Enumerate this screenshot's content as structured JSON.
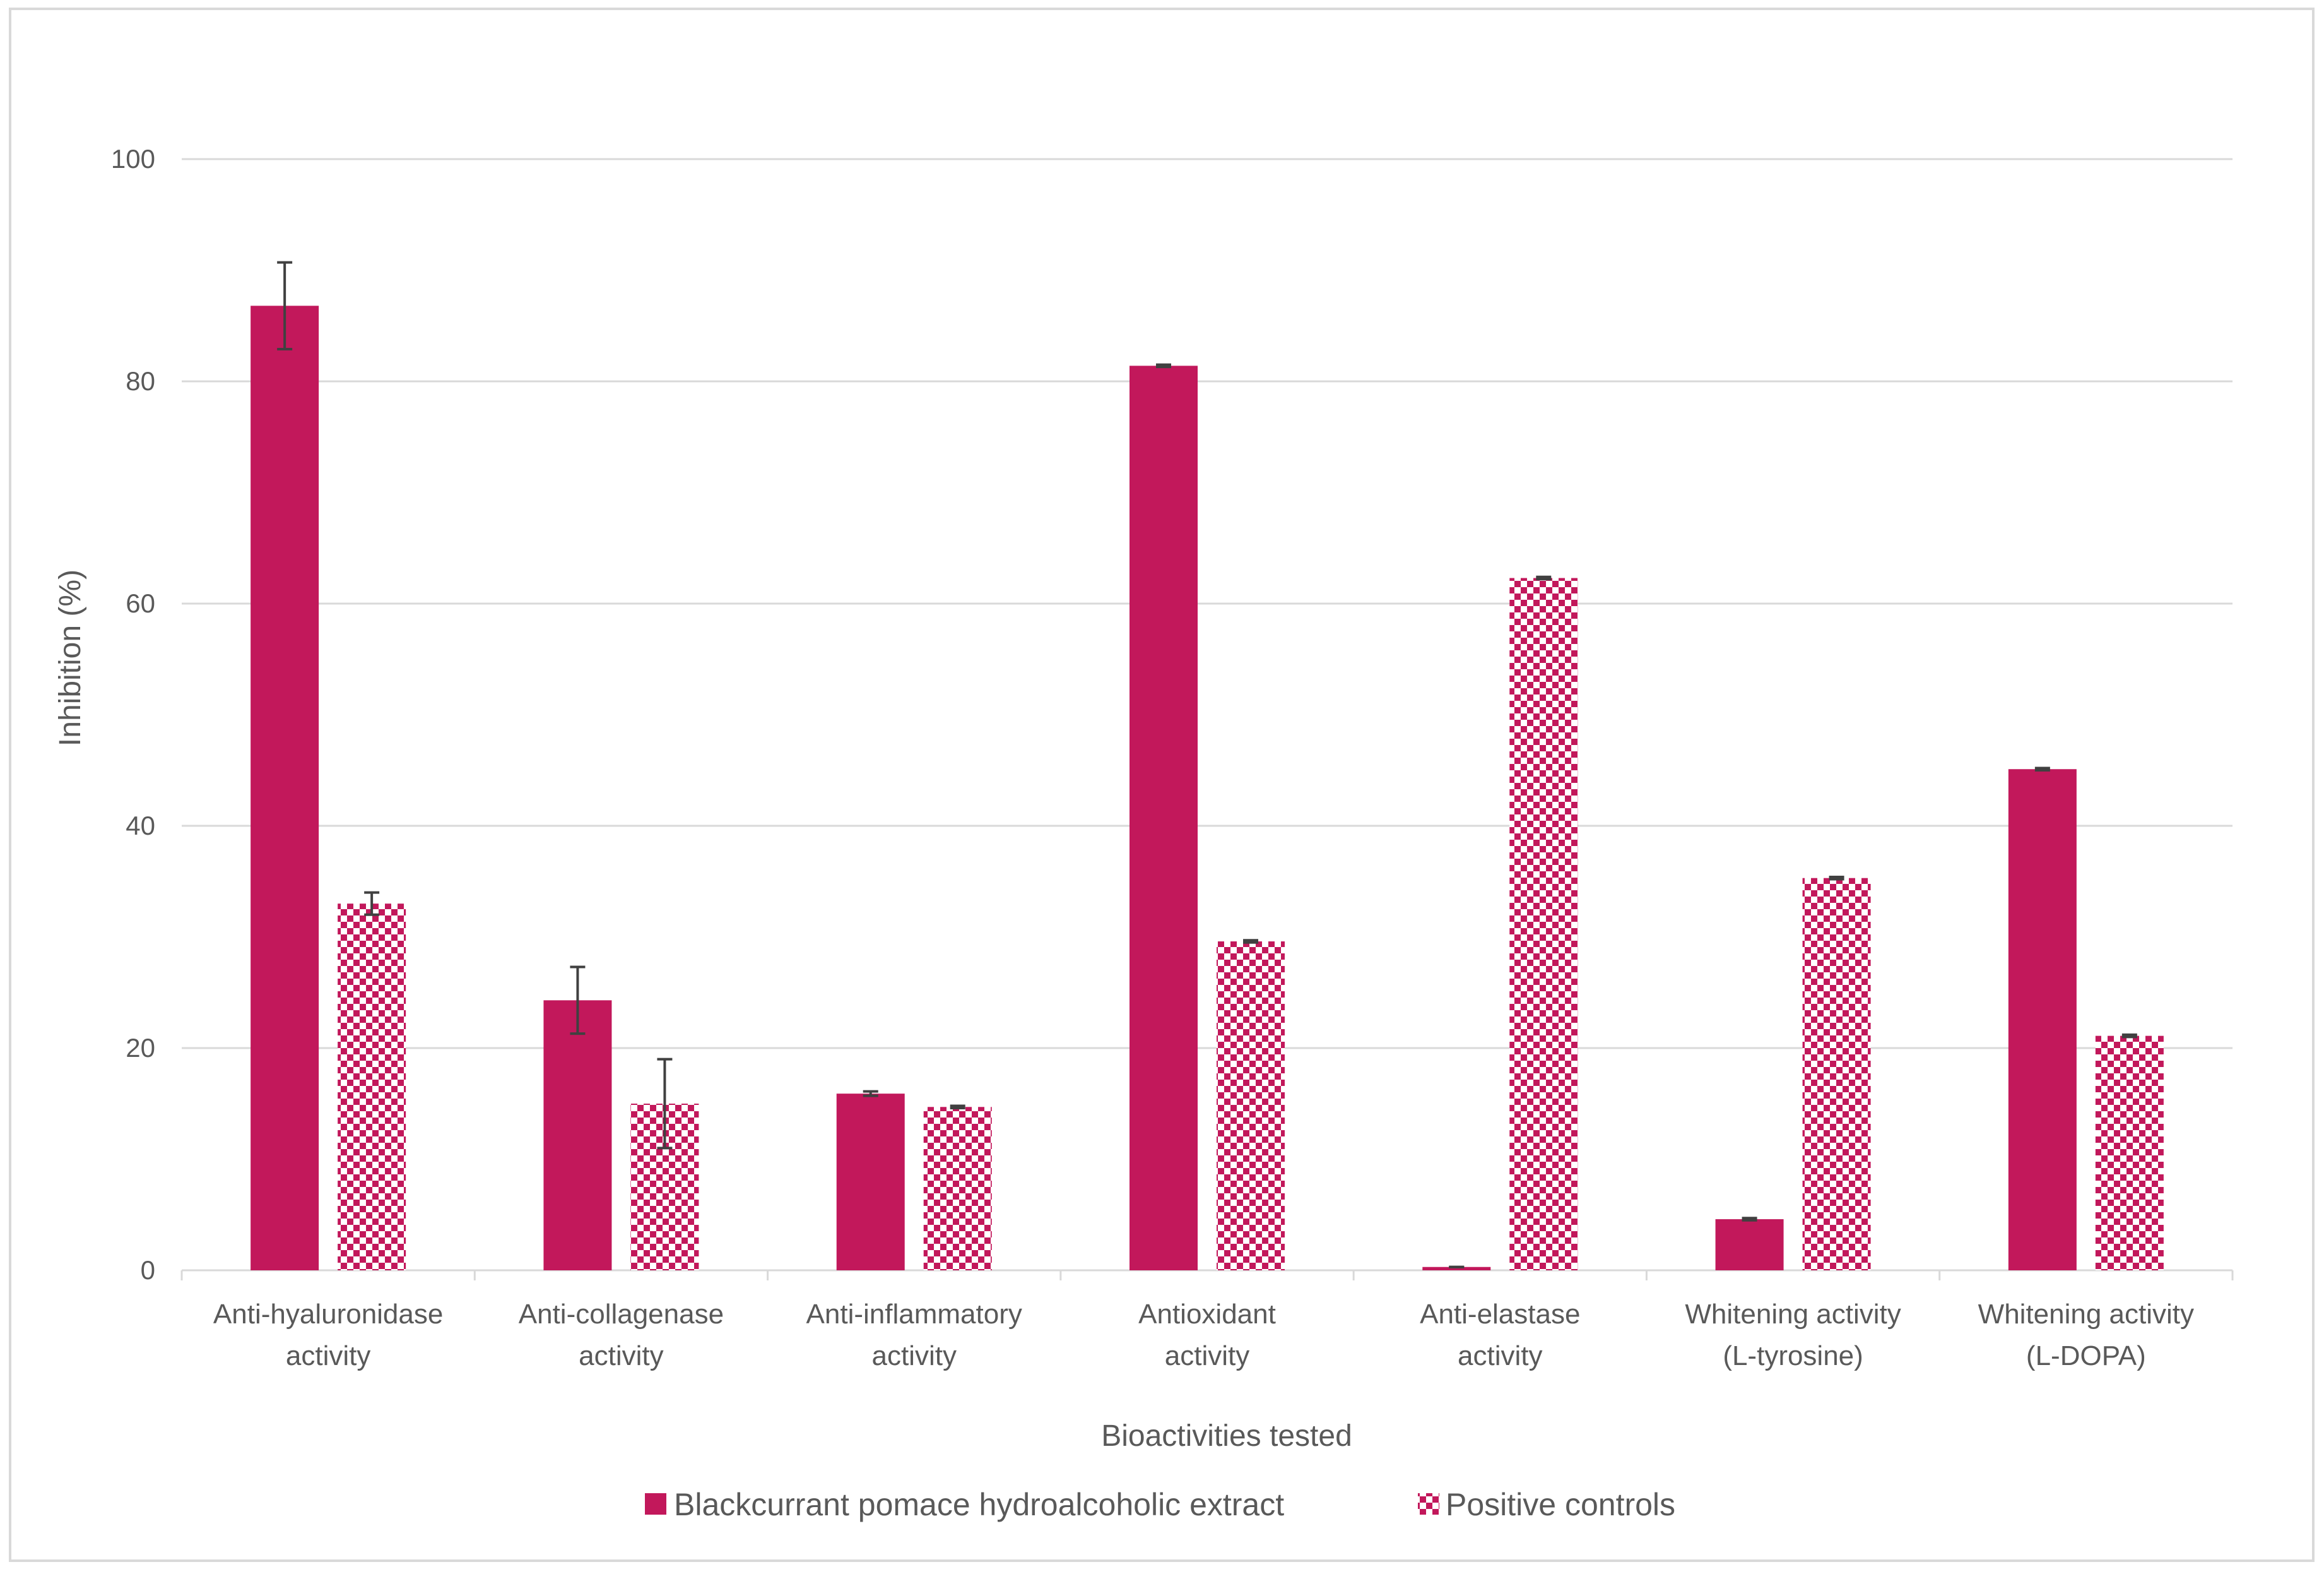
{
  "colors": {
    "primary": "#C2185B",
    "check_light": "#ffffff",
    "grid": "#D9D9D9",
    "text": "#595959",
    "error_bar": "#404040"
  },
  "chart_data": {
    "type": "bar",
    "title": "",
    "xlabel": "Bioactivities tested",
    "ylabel": "Inhibition (%)",
    "ylim": [
      0,
      100
    ],
    "yticks": [
      0,
      20,
      40,
      60,
      80,
      100
    ],
    "ytick_labels": [
      "0",
      "20",
      "40",
      "60",
      "80",
      "100"
    ],
    "grid": true,
    "legend_position": "bottom",
    "categories": [
      [
        "Anti-hyaluronidase",
        "activity"
      ],
      [
        "Anti-collagenase",
        "activity"
      ],
      [
        "Anti-inflammatory",
        "activity"
      ],
      [
        "Antioxidant",
        "activity"
      ],
      [
        "Anti-elastase",
        "activity"
      ],
      [
        "Whitening activity",
        "(L-tyrosine)"
      ],
      [
        "Whitening activity",
        "(L-DOPA)"
      ]
    ],
    "series": [
      {
        "name": "Blackcurrant pomace hydroalcoholic extract",
        "pattern": "solid",
        "values": [
          86.8,
          24.3,
          15.9,
          81.4,
          0.3,
          4.6,
          45.1
        ],
        "errors": [
          3.9,
          3.0,
          0.2,
          0.1,
          0.0,
          0.1,
          0.1
        ]
      },
      {
        "name": "Positive controls",
        "pattern": "checker",
        "values": [
          33.0,
          15.0,
          14.7,
          29.6,
          62.3,
          35.3,
          21.1
        ],
        "errors": [
          1.0,
          4.0,
          0.1,
          0.1,
          0.1,
          0.1,
          0.1
        ]
      }
    ]
  }
}
